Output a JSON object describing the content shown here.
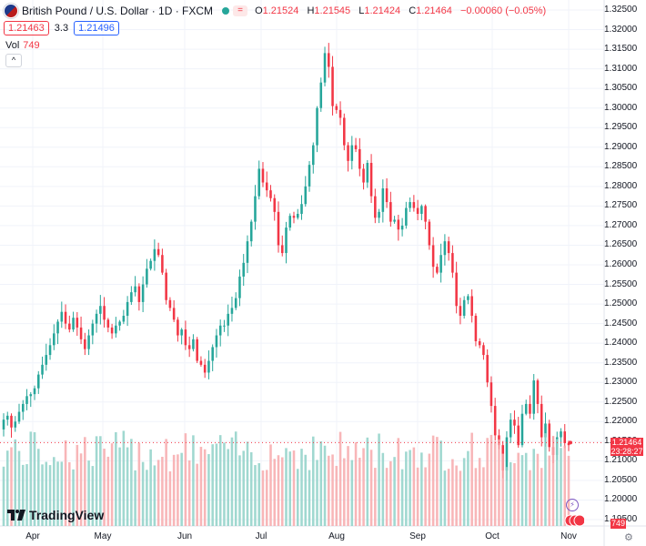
{
  "header": {
    "symbol": "British Pound / U.S. Dollar · 1D · FXCM",
    "chip": "=",
    "open_label": "O",
    "open": "1.21524",
    "high_label": "H",
    "high": "1.21545",
    "low_label": "L",
    "low": "1.21424",
    "close_label": "C",
    "close": "1.21464",
    "change": "−0.00060 (−0.05%)",
    "sell_price": "1.21463",
    "spread": "3.3",
    "buy_price": "1.21496",
    "volume_label": "Vol",
    "volume_value": "749",
    "collapse_icon": "^"
  },
  "price_axis": {
    "labels": [
      "1.32500",
      "1.32000",
      "1.31500",
      "1.31000",
      "1.30500",
      "1.30000",
      "1.29500",
      "1.29000",
      "1.28500",
      "1.28000",
      "1.27500",
      "1.27000",
      "1.26500",
      "1.26000",
      "1.25500",
      "1.25000",
      "1.24500",
      "1.24000",
      "1.23500",
      "1.23000",
      "1.22500",
      "1.22000",
      "1.21500",
      "1.21000",
      "1.20500",
      "1.20000",
      "1.19500"
    ],
    "current_price": "1.21464",
    "countdown": "23:28:27",
    "volume_tag": "749"
  },
  "time_axis": {
    "labels": [
      "Apr",
      "May",
      "Jun",
      "Jul",
      "Aug",
      "Sep",
      "Oct",
      "Nov"
    ]
  },
  "branding": {
    "name": "TradingView"
  },
  "colors": {
    "up": "#26a69a",
    "down": "#f23645",
    "up_vol": "#8fd1c8",
    "down_vol": "#f7a9ab",
    "grid": "#f0f3fa"
  },
  "icons": {
    "settings": "gear-icon",
    "flash": "lightning-icon"
  },
  "chart_data": {
    "type": "candlestick",
    "title": "British Pound / U.S. Dollar · 1D · FXCM",
    "ylim": [
      1.195,
      1.325
    ],
    "x_range_months": [
      "Apr",
      "May",
      "Jun",
      "Jul",
      "Aug",
      "Sep",
      "Oct",
      "Nov"
    ],
    "candles": [
      [
        1.2205,
        1.2215,
        1.2185,
        1.22,
        1.2225,
        1.2245,
        1.2265,
        1.227,
        1.2285,
        1.232,
        1.2345,
        1.237,
        1.2395,
        1.2425,
        1.2455,
        1.248,
        1.245,
        1.2435,
        1.2465,
        1.244,
        1.241,
        1.2385,
        1.242,
        1.245,
        1.2475,
        1.2495,
        1.246,
        1.244,
        1.2425,
        1.2445,
        1.2455,
        1.247,
        1.2505,
        1.253,
        1.2545,
        1.2505,
        1.255,
        1.259,
        1.261,
        1.264,
        1.2625,
        1.258,
        1.251,
        1.249,
        1.246,
        1.242,
        1.2435,
        1.2395,
        1.2385,
        1.241,
        1.2355,
        1.2345,
        1.2325,
        1.2355,
        1.239,
        1.242,
        1.2445,
        1.2445,
        1.2475,
        1.249,
        1.2515,
        1.257,
        1.2605,
        1.266,
        1.271,
        1.2775,
        1.2845,
        1.281,
        1.279,
        1.277,
        1.2735,
        1.265,
        1.263,
        1.2695,
        1.2725,
        1.272,
        1.273,
        1.2755,
        1.28,
        1.2855,
        1.2905,
        1.3,
        1.3065,
        1.314,
        1.3105,
        1.3005,
        1.2995,
        1.2975,
        1.2905,
        1.2865,
        1.2905,
        1.2895,
        1.2845,
        1.281,
        1.286,
        1.2775,
        1.272,
        1.2735,
        1.2795,
        1.276,
        1.271,
        1.2715,
        1.269,
        1.27,
        1.2745,
        1.276,
        1.2745,
        1.273,
        1.275,
        1.271,
        1.265,
        1.2595,
        1.258,
        1.2625,
        1.266,
        1.263,
        1.258,
        1.2495,
        1.247,
        1.251,
        1.252,
        1.247,
        1.2405,
        1.2395,
        1.237,
        1.23,
        1.224,
        1.2165,
        1.214,
        1.2075,
        1.216,
        1.2205,
        1.219,
        1.214,
        1.222,
        1.2245,
        1.222,
        1.2305,
        1.2245,
        1.216,
        1.2195,
        1.2135,
        1.2115,
        1.216,
        1.2175,
        1.2145,
        1.214
      ]
    ],
    "ohlc_note": "Daily GBP/USD closes (approx.) from late March to early November; last candle O 1.21524 H 1.21545 L 1.21424 C 1.21464"
  }
}
